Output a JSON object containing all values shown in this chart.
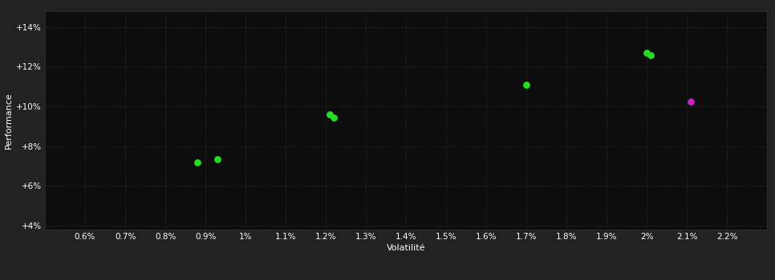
{
  "background_color": "#222222",
  "plot_bg_color": "#0d0d0d",
  "grid_color": "#2a2a2a",
  "text_color": "#ffffff",
  "xlabel": "Volatilité",
  "ylabel": "Performance",
  "xlim": [
    0.005,
    0.023
  ],
  "ylim": [
    0.038,
    0.148
  ],
  "xtick_vals": [
    0.006,
    0.007,
    0.008,
    0.009,
    0.01,
    0.011,
    0.012,
    0.013,
    0.014,
    0.015,
    0.016,
    0.017,
    0.018,
    0.019,
    0.02,
    0.021,
    0.022
  ],
  "xtick_labels": [
    "0.6%",
    "0.7%",
    "0.8%",
    "0.9%",
    "1%",
    "1.1%",
    "1.2%",
    "1.3%",
    "1.4%",
    "1.5%",
    "1.6%",
    "1.7%",
    "1.8%",
    "1.9%",
    "2%",
    "2.1%",
    "2.2%"
  ],
  "ytick_vals": [
    0.04,
    0.06,
    0.08,
    0.1,
    0.12,
    0.14
  ],
  "ytick_labels": [
    "+4%",
    "+6%",
    "+8%",
    "+10%",
    "+12%",
    "+14%"
  ],
  "green_points_x": [
    0.0088,
    0.0093,
    0.0121,
    0.0122,
    0.017,
    0.02,
    0.0201
  ],
  "green_points_y": [
    0.072,
    0.0735,
    0.096,
    0.0945,
    0.111,
    0.127,
    0.126
  ],
  "purple_points_x": [
    0.0211
  ],
  "purple_points_y": [
    0.1025
  ],
  "green_color": "#22dd22",
  "purple_color": "#cc22cc",
  "marker_size": 40,
  "font_size_ticks": 7.5,
  "font_size_label": 8
}
